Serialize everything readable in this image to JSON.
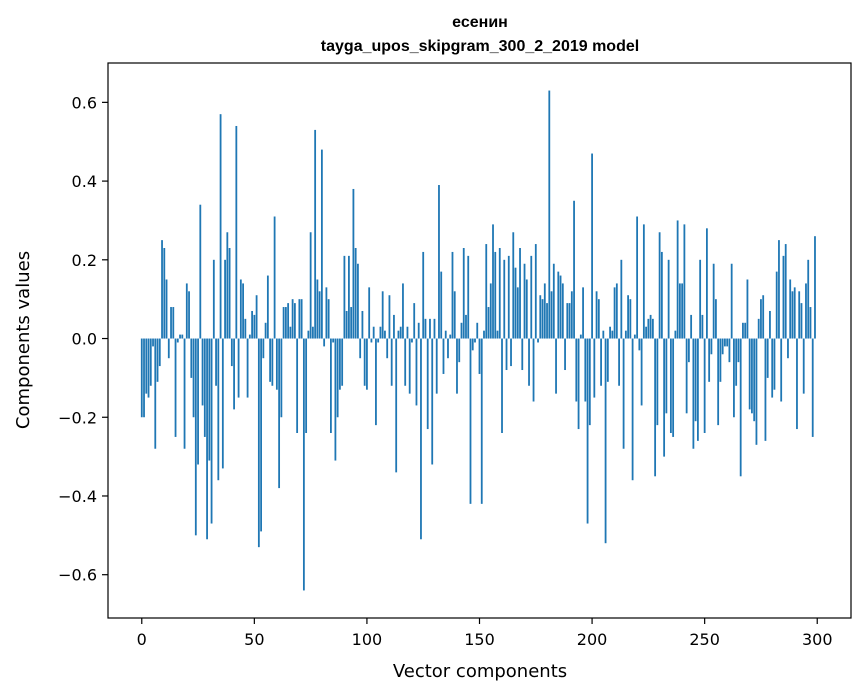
{
  "chart_data": {
    "type": "bar",
    "title_line1": "есенин",
    "title_line2": "tayga_upos_skipgram_300_2_2019 model",
    "xlabel": "Vector components",
    "ylabel": "Components values",
    "xlim": [
      -15,
      315
    ],
    "ylim": [
      -0.71,
      0.7
    ],
    "x_ticks": [
      0,
      50,
      100,
      150,
      200,
      250,
      300
    ],
    "x_tick_labels": [
      "0",
      "50",
      "100",
      "150",
      "200",
      "250",
      "300"
    ],
    "y_ticks": [
      -0.6,
      -0.4,
      -0.2,
      0.0,
      0.2,
      0.4,
      0.6
    ],
    "y_tick_labels": [
      "−0.6",
      "−0.4",
      "−0.2",
      "0.0",
      "0.2",
      "0.4",
      "0.6"
    ],
    "bar_color": "#1f77b4",
    "values": [
      -0.2,
      -0.2,
      -0.14,
      -0.15,
      -0.12,
      -0.02,
      -0.28,
      -0.11,
      -0.07,
      0.25,
      0.23,
      0.15,
      -0.05,
      0.08,
      0.08,
      -0.25,
      -0.01,
      0.01,
      0.01,
      -0.28,
      0.14,
      0.12,
      -0.1,
      -0.2,
      -0.5,
      -0.32,
      0.34,
      -0.17,
      -0.25,
      -0.51,
      -0.31,
      -0.47,
      0.2,
      -0.12,
      -0.36,
      0.57,
      -0.33,
      0.2,
      0.27,
      0.23,
      -0.07,
      -0.18,
      0.54,
      -0.15,
      0.15,
      0.14,
      0.05,
      -0.15,
      0.01,
      0.07,
      0.06,
      0.11,
      -0.53,
      -0.49,
      -0.05,
      0.04,
      0.16,
      -0.11,
      -0.12,
      0.31,
      -0.13,
      -0.38,
      -0.2,
      0.08,
      0.08,
      0.09,
      0.03,
      0.1,
      0.09,
      -0.24,
      0.1,
      0.1,
      -0.64,
      -0.24,
      0.02,
      0.27,
      0.03,
      0.53,
      0.15,
      0.12,
      0.48,
      -0.02,
      0.13,
      0.1,
      -0.24,
      -0.01,
      -0.31,
      -0.2,
      -0.13,
      -0.12,
      0.21,
      0.07,
      0.21,
      0.08,
      0.38,
      0.23,
      0.19,
      -0.05,
      0.07,
      -0.12,
      -0.13,
      0.13,
      -0.01,
      0.03,
      -0.22,
      -0.01,
      0.03,
      0.12,
      0.02,
      -0.05,
      0.11,
      -0.12,
      0.06,
      -0.34,
      0.02,
      0.03,
      0.14,
      -0.12,
      0.03,
      -0.14,
      -0.01,
      0.09,
      -0.17,
      0.04,
      -0.51,
      0.22,
      0.05,
      -0.23,
      0.05,
      -0.32,
      0.05,
      -0.14,
      0.39,
      0.17,
      -0.09,
      0.02,
      -0.05,
      0.01,
      0.22,
      0.12,
      -0.14,
      -0.06,
      0.04,
      0.23,
      0.06,
      0.21,
      -0.42,
      -0.03,
      -0.01,
      0.04,
      -0.09,
      -0.42,
      0.02,
      0.24,
      0.08,
      0.14,
      0.29,
      0.22,
      0.02,
      0.23,
      -0.24,
      0.2,
      -0.08,
      0.21,
      -0.07,
      0.27,
      0.18,
      0.13,
      0.23,
      -0.08,
      0.19,
      0.15,
      -0.12,
      0.21,
      -0.16,
      0.24,
      -0.01,
      0.11,
      0.1,
      0.14,
      0.09,
      0.63,
      0.12,
      0.19,
      -0.14,
      0.17,
      0.16,
      0.14,
      -0.08,
      0.09,
      0.09,
      0.12,
      0.35,
      -0.16,
      -0.23,
      0.01,
      0.13,
      -0.16,
      -0.47,
      -0.22,
      0.47,
      -0.15,
      0.12,
      0.1,
      -0.12,
      0.02,
      -0.52,
      -0.11,
      0.03,
      0.02,
      0.13,
      0.14,
      -0.12,
      0.2,
      -0.28,
      0.02,
      0.11,
      0.1,
      -0.36,
      0.01,
      0.31,
      -0.03,
      -0.17,
      0.29,
      0.03,
      0.05,
      0.06,
      0.05,
      -0.35,
      -0.22,
      0.27,
      0.22,
      -0.3,
      -0.19,
      0.2,
      -0.24,
      -0.25,
      0.02,
      0.3,
      0.14,
      0.14,
      0.29,
      -0.19,
      -0.06,
      0.06,
      -0.28,
      -0.21,
      -0.26,
      0.2,
      0.06,
      -0.24,
      0.28,
      -0.11,
      -0.04,
      0.19,
      0.1,
      -0.22,
      -0.11,
      -0.04,
      -0.02,
      -0.02,
      -0.06,
      0.19,
      -0.2,
      -0.12,
      -0.06,
      -0.35,
      0.04,
      0.04,
      0.15,
      -0.18,
      -0.19,
      -0.21,
      -0.27,
      0.05,
      0.1,
      0.11,
      -0.26,
      -0.1,
      0.07,
      -0.15,
      -0.13,
      0.17,
      0.25,
      -0.16,
      0.21,
      0.24,
      -0.05,
      0.15,
      0.12,
      0.13,
      -0.23,
      0.12,
      0.09,
      -0.14,
      0.14,
      0.2,
      0.08,
      -0.25,
      0.26
    ]
  }
}
